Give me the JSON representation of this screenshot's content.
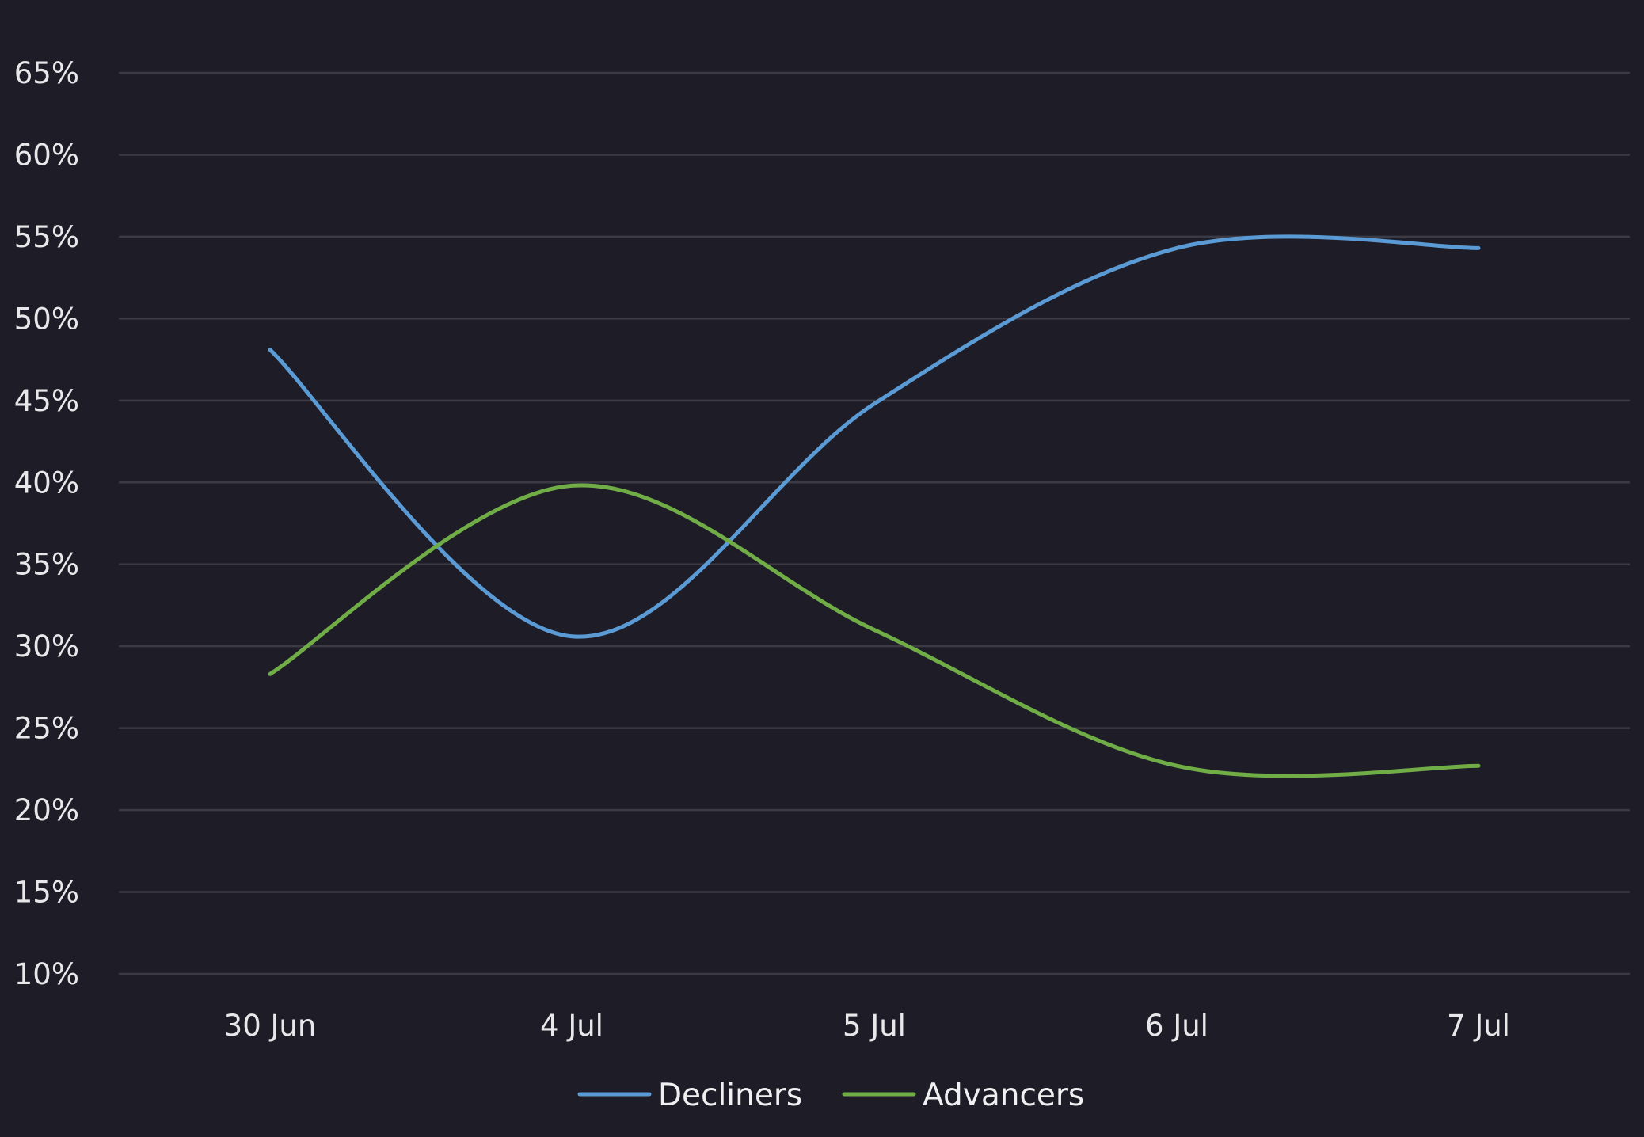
{
  "chart_data": {
    "type": "line",
    "x": [
      "30 Jun",
      "4 Jul",
      "5 Jul",
      "6 Jul",
      "7 Jul"
    ],
    "series": [
      {
        "name": "Decliners",
        "color": "#5b9bd5",
        "values": [
          48.1,
          30.6,
          44.8,
          54.3,
          54.3
        ]
      },
      {
        "name": "Advancers",
        "color": "#70ad47",
        "values": [
          28.3,
          39.8,
          31.0,
          22.7,
          22.7
        ]
      }
    ],
    "y_ticks": [
      "10%",
      "15%",
      "20%",
      "25%",
      "30%",
      "35%",
      "40%",
      "45%",
      "50%",
      "55%",
      "60%",
      "65%"
    ],
    "ylim": [
      10,
      65
    ],
    "y_unit": "%",
    "grid": true,
    "legend_position": "bottom",
    "smooth": true,
    "background_color": "#1e1d27",
    "gridline_color": "#3c3b44",
    "text_color": "#e8e8ea"
  }
}
